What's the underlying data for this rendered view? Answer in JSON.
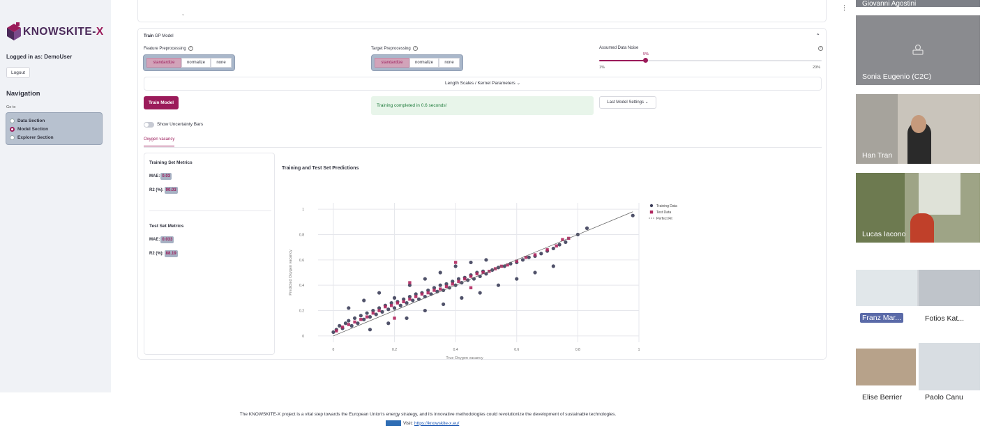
{
  "sidebar": {
    "logo_text_main": "KNOWSKITE-",
    "logo_text_x": "X",
    "logged_in": "Logged in as: DemoUser",
    "logout_label": "Logout",
    "nav_title": "Navigation",
    "goto_label": "Go to",
    "nav_items": [
      {
        "label": "Data Section",
        "selected": false
      },
      {
        "label": "Model Section",
        "selected": true
      },
      {
        "label": "Explorer Section",
        "selected": false
      }
    ]
  },
  "card": {
    "title_bold": "Train",
    "title_rest": " GP Model",
    "feature_label": "Feature Preprocessing",
    "target_label": "Target Preprocessing",
    "noise_label": "Assumed Data Noise",
    "feature_options": [
      "standardize",
      "normalize",
      "none"
    ],
    "target_options": [
      "standardize",
      "normalize",
      "none"
    ],
    "selected_option": "standardize",
    "noise": {
      "value": "5%",
      "min": "1%",
      "max": "20%",
      "fraction": 0.21
    },
    "expander_label": "Length Scales / Kernel Parameters",
    "train_button": "Train Model",
    "success_message": "Training completed in 0.6 seconds!",
    "last_settings_label": "Last Model Settings",
    "toggle_label": "Show Uncertainty Bars",
    "tab_label": "Oxygen vacancy"
  },
  "metrics": {
    "training_title": "Training Set Metrics",
    "test_title": "Test Set Metrics",
    "mae_label": "MAE:",
    "r2_label": "R2 (%):",
    "training_mae": "0.03",
    "training_r2": "90.03",
    "test_mae": "0.033",
    "test_r2": "88.19"
  },
  "chart_data": {
    "type": "scatter",
    "title": "Training and Test Set Predictions",
    "xlabel": "True Oxygen vacancy",
    "ylabel": "Predicted Oxygen vacancy",
    "xlim": [
      -0.05,
      1.0
    ],
    "ylim": [
      -0.05,
      1.05
    ],
    "x_ticks": [
      0,
      0.2,
      0.4,
      0.6,
      0.8,
      1
    ],
    "y_ticks": [
      0,
      0.2,
      0.4,
      0.6,
      0.8,
      1
    ],
    "grid": true,
    "legend_position": "top-right",
    "colors": {
      "training": "#3d3f5a",
      "test": "#b0275f",
      "fit": "#666666"
    },
    "series": [
      {
        "name": "Training Data",
        "marker": "circle",
        "points": [
          [
            0.0,
            0.03
          ],
          [
            0.01,
            0.05
          ],
          [
            0.02,
            0.08
          ],
          [
            0.03,
            0.06
          ],
          [
            0.04,
            0.1
          ],
          [
            0.05,
            0.12
          ],
          [
            0.06,
            0.08
          ],
          [
            0.07,
            0.14
          ],
          [
            0.08,
            0.1
          ],
          [
            0.09,
            0.16
          ],
          [
            0.1,
            0.13
          ],
          [
            0.11,
            0.18
          ],
          [
            0.12,
            0.15
          ],
          [
            0.13,
            0.2
          ],
          [
            0.14,
            0.17
          ],
          [
            0.15,
            0.22
          ],
          [
            0.16,
            0.19
          ],
          [
            0.17,
            0.24
          ],
          [
            0.18,
            0.21
          ],
          [
            0.19,
            0.26
          ],
          [
            0.2,
            0.22
          ],
          [
            0.21,
            0.27
          ],
          [
            0.22,
            0.24
          ],
          [
            0.23,
            0.29
          ],
          [
            0.24,
            0.26
          ],
          [
            0.25,
            0.31
          ],
          [
            0.26,
            0.28
          ],
          [
            0.27,
            0.33
          ],
          [
            0.28,
            0.29
          ],
          [
            0.29,
            0.34
          ],
          [
            0.3,
            0.31
          ],
          [
            0.31,
            0.36
          ],
          [
            0.32,
            0.33
          ],
          [
            0.33,
            0.38
          ],
          [
            0.34,
            0.35
          ],
          [
            0.35,
            0.4
          ],
          [
            0.36,
            0.36
          ],
          [
            0.37,
            0.41
          ],
          [
            0.38,
            0.38
          ],
          [
            0.39,
            0.43
          ],
          [
            0.4,
            0.4
          ],
          [
            0.41,
            0.45
          ],
          [
            0.42,
            0.42
          ],
          [
            0.43,
            0.46
          ],
          [
            0.44,
            0.44
          ],
          [
            0.45,
            0.48
          ],
          [
            0.46,
            0.45
          ],
          [
            0.47,
            0.5
          ],
          [
            0.48,
            0.47
          ],
          [
            0.49,
            0.51
          ],
          [
            0.5,
            0.49
          ],
          [
            0.52,
            0.52
          ],
          [
            0.54,
            0.54
          ],
          [
            0.56,
            0.55
          ],
          [
            0.58,
            0.57
          ],
          [
            0.6,
            0.58
          ],
          [
            0.62,
            0.6
          ],
          [
            0.64,
            0.62
          ],
          [
            0.66,
            0.63
          ],
          [
            0.68,
            0.65
          ],
          [
            0.7,
            0.67
          ],
          [
            0.72,
            0.69
          ],
          [
            0.74,
            0.72
          ],
          [
            0.76,
            0.74
          ],
          [
            0.8,
            0.8
          ],
          [
            0.83,
            0.85
          ],
          [
            0.98,
            0.95
          ],
          [
            0.05,
            0.22
          ],
          [
            0.1,
            0.28
          ],
          [
            0.15,
            0.34
          ],
          [
            0.2,
            0.3
          ],
          [
            0.25,
            0.4
          ],
          [
            0.3,
            0.45
          ],
          [
            0.35,
            0.5
          ],
          [
            0.4,
            0.55
          ],
          [
            0.45,
            0.58
          ],
          [
            0.5,
            0.6
          ],
          [
            0.12,
            0.05
          ],
          [
            0.18,
            0.1
          ],
          [
            0.24,
            0.14
          ],
          [
            0.3,
            0.2
          ],
          [
            0.36,
            0.25
          ],
          [
            0.42,
            0.3
          ],
          [
            0.48,
            0.34
          ],
          [
            0.54,
            0.4
          ],
          [
            0.6,
            0.45
          ],
          [
            0.66,
            0.5
          ],
          [
            0.72,
            0.55
          ]
        ]
      },
      {
        "name": "Test Data",
        "marker": "square",
        "points": [
          [
            0.01,
            0.04
          ],
          [
            0.03,
            0.07
          ],
          [
            0.05,
            0.09
          ],
          [
            0.07,
            0.11
          ],
          [
            0.09,
            0.13
          ],
          [
            0.11,
            0.15
          ],
          [
            0.13,
            0.18
          ],
          [
            0.15,
            0.2
          ],
          [
            0.17,
            0.23
          ],
          [
            0.19,
            0.24
          ],
          [
            0.21,
            0.26
          ],
          [
            0.23,
            0.27
          ],
          [
            0.25,
            0.29
          ],
          [
            0.27,
            0.31
          ],
          [
            0.29,
            0.33
          ],
          [
            0.31,
            0.34
          ],
          [
            0.33,
            0.36
          ],
          [
            0.35,
            0.37
          ],
          [
            0.37,
            0.39
          ],
          [
            0.39,
            0.41
          ],
          [
            0.41,
            0.43
          ],
          [
            0.43,
            0.45
          ],
          [
            0.45,
            0.47
          ],
          [
            0.47,
            0.49
          ],
          [
            0.49,
            0.5
          ],
          [
            0.51,
            0.51
          ],
          [
            0.53,
            0.53
          ],
          [
            0.55,
            0.55
          ],
          [
            0.57,
            0.56
          ],
          [
            0.6,
            0.59
          ],
          [
            0.63,
            0.62
          ],
          [
            0.66,
            0.64
          ],
          [
            0.7,
            0.68
          ],
          [
            0.73,
            0.71
          ],
          [
            0.75,
            0.76
          ],
          [
            0.77,
            0.77
          ],
          [
            0.4,
            0.58
          ],
          [
            0.25,
            0.42
          ],
          [
            0.2,
            0.14
          ],
          [
            0.45,
            0.38
          ]
        ]
      },
      {
        "name": "Perfect Fit",
        "marker": "dash-line",
        "points": [
          [
            0,
            0
          ],
          [
            0.98,
            0.98
          ]
        ]
      }
    ]
  },
  "video": {
    "tiles": [
      {
        "name": "Giovanni Agostini"
      },
      {
        "name": "Sonia Eugenio (C2C)"
      },
      {
        "name": "Han Tran"
      },
      {
        "name": "Lucas Iacono"
      },
      {
        "name": "Franz Mar..."
      },
      {
        "name": "Fotios Kat..."
      },
      {
        "name": "Elise Berrier"
      },
      {
        "name": "Paolo Canu"
      }
    ]
  },
  "footer": {
    "text": "The KNOWSKITE-X project is a vital step towards the European Union's energy strategy, and its innovative methodologies could revolutionize the development of sustainable technologies.",
    "visit_label": "Visit:",
    "url": "https://knowskite-x.eu/"
  }
}
